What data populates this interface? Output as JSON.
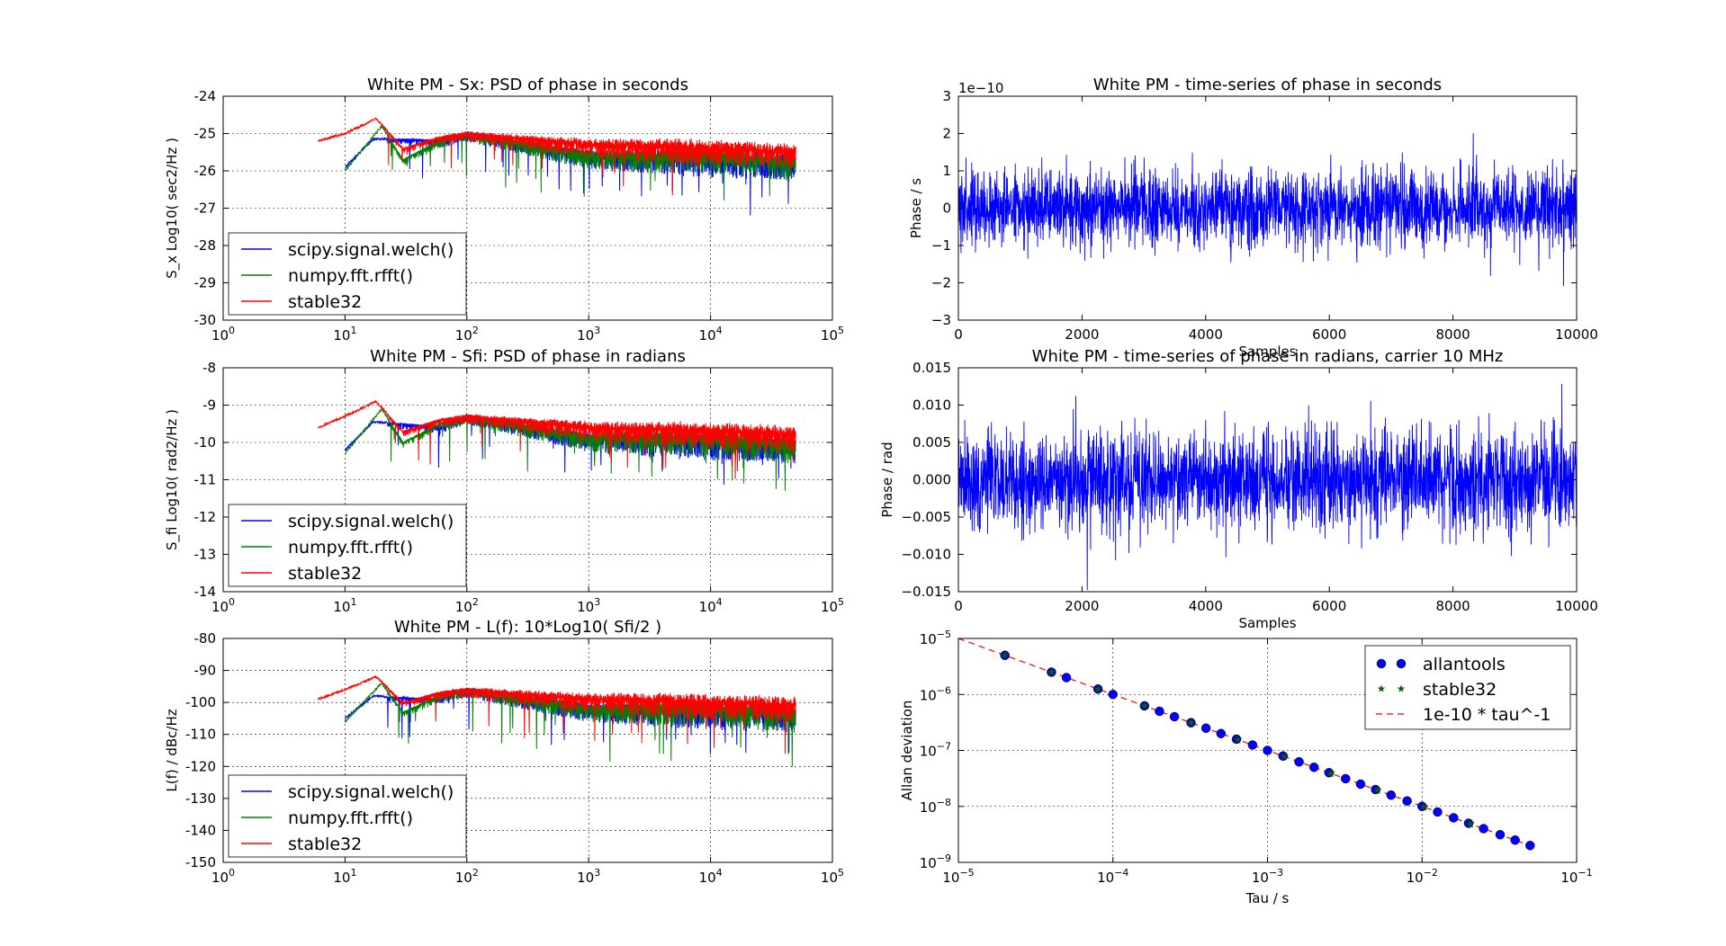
{
  "chart_data": [
    {
      "type": "line",
      "title": "White PM - Sx: PSD of phase in seconds",
      "xlabel": "",
      "ylabel": "S_x  Log10( sec2/Hz )",
      "xscale": "log",
      "xlim": [
        1,
        100000
      ],
      "ylim": [
        -30,
        -24
      ],
      "xticks": [
        {
          "v": 1,
          "m": "0"
        },
        {
          "v": 10,
          "m": "1"
        },
        {
          "v": 100,
          "m": "2"
        },
        {
          "v": 1000,
          "m": "3"
        },
        {
          "v": 10000,
          "m": "4"
        },
        {
          "v": 100000,
          "m": "5"
        }
      ],
      "yticks": [
        "-30",
        "-29",
        "-28",
        "-27",
        "-26",
        "-25",
        "-24"
      ],
      "grid": true,
      "legend": "bottom-left",
      "series": [
        {
          "name": "scipy.signal.welch()",
          "color": "#0000ff",
          "x_range": [
            10,
            50000
          ],
          "trend": [
            [
              10,
              -25.9
            ],
            [
              17,
              -25.15
            ],
            [
              30,
              -25.15
            ],
            [
              60,
              -25.2
            ],
            [
              100,
              -25.0
            ],
            [
              1000,
              -25.6
            ],
            [
              10000,
              -25.7
            ],
            [
              50000,
              -25.8
            ]
          ]
        },
        {
          "name": "numpy.fft.rfft()",
          "color": "#008000",
          "x_range": [
            10,
            50000
          ],
          "trend": [
            [
              10,
              -26.0
            ],
            [
              20,
              -24.8
            ],
            [
              30,
              -25.7
            ],
            [
              60,
              -25.2
            ],
            [
              100,
              -25.0
            ],
            [
              1000,
              -25.6
            ],
            [
              10000,
              -25.6
            ],
            [
              50000,
              -25.8
            ]
          ]
        },
        {
          "name": "stable32",
          "color": "#ff0000",
          "x_range": [
            6,
            50000
          ],
          "trend": [
            [
              6,
              -25.2
            ],
            [
              10,
              -25.0
            ],
            [
              18,
              -24.6
            ],
            [
              30,
              -25.4
            ],
            [
              60,
              -25.1
            ],
            [
              100,
              -25.0
            ],
            [
              1000,
              -25.3
            ],
            [
              10000,
              -25.4
            ],
            [
              50000,
              -25.5
            ]
          ]
        }
      ]
    },
    {
      "type": "line",
      "title": "White PM - time-series of phase in seconds",
      "xlabel": "Samples",
      "ylabel": "Phase / s",
      "offset_text": "1e−10",
      "xlim": [
        0,
        10000
      ],
      "ylim": [
        -3,
        3
      ],
      "xticks": [
        "0",
        "2000",
        "4000",
        "6000",
        "8000",
        "10000"
      ],
      "yticks": [
        "−3",
        "−2",
        "−1",
        "0",
        "1",
        "2",
        "3"
      ],
      "grid": false,
      "series": [
        {
          "name": "",
          "color": "#0000ff",
          "n_samples": 10000,
          "std": 0.5
        }
      ]
    },
    {
      "type": "line",
      "title": "White PM - Sfi: PSD of phase in radians",
      "xlabel": "",
      "ylabel": "S_fi  Log10( rad2/Hz )",
      "xscale": "log",
      "xlim": [
        1,
        100000
      ],
      "ylim": [
        -14,
        -8
      ],
      "xticks": [
        {
          "v": 1,
          "m": "0"
        },
        {
          "v": 10,
          "m": "1"
        },
        {
          "v": 100,
          "m": "2"
        },
        {
          "v": 1000,
          "m": "3"
        },
        {
          "v": 10000,
          "m": "4"
        },
        {
          "v": 100000,
          "m": "5"
        }
      ],
      "yticks": [
        "-14",
        "-13",
        "-12",
        "-11",
        "-10",
        "-9",
        "-8"
      ],
      "grid": true,
      "legend": "bottom-left",
      "series": [
        {
          "name": "scipy.signal.welch()",
          "color": "#0000ff",
          "x_range": [
            10,
            50000
          ],
          "trend": [
            [
              10,
              -10.2
            ],
            [
              17,
              -9.45
            ],
            [
              30,
              -9.5
            ],
            [
              60,
              -9.6
            ],
            [
              100,
              -9.3
            ],
            [
              1000,
              -9.9
            ],
            [
              10000,
              -10.0
            ],
            [
              50000,
              -10.1
            ]
          ]
        },
        {
          "name": "numpy.fft.rfft()",
          "color": "#008000",
          "x_range": [
            10,
            50000
          ],
          "trend": [
            [
              10,
              -10.3
            ],
            [
              20,
              -9.1
            ],
            [
              30,
              -10.0
            ],
            [
              60,
              -9.5
            ],
            [
              100,
              -9.3
            ],
            [
              1000,
              -9.9
            ],
            [
              10000,
              -9.9
            ],
            [
              50000,
              -10.1
            ]
          ]
        },
        {
          "name": "stable32",
          "color": "#ff0000",
          "x_range": [
            6,
            50000
          ],
          "trend": [
            [
              6,
              -9.6
            ],
            [
              10,
              -9.3
            ],
            [
              18,
              -8.9
            ],
            [
              30,
              -9.7
            ],
            [
              60,
              -9.4
            ],
            [
              100,
              -9.3
            ],
            [
              1000,
              -9.6
            ],
            [
              10000,
              -9.7
            ],
            [
              50000,
              -9.8
            ]
          ]
        }
      ]
    },
    {
      "type": "line",
      "title": "White PM - time-series of phase in radians, carrier 10 MHz",
      "xlabel": "Samples",
      "ylabel": "Phase / rad",
      "xlim": [
        0,
        10000
      ],
      "ylim": [
        -0.015,
        0.015
      ],
      "xticks": [
        "0",
        "2000",
        "4000",
        "6000",
        "8000",
        "10000"
      ],
      "yticks": [
        "−0.015",
        "−0.010",
        "−0.005",
        "0.000",
        "0.005",
        "0.010",
        "0.015"
      ],
      "grid": false,
      "series": [
        {
          "name": "",
          "color": "#0000ff",
          "n_samples": 10000,
          "std": 0.0032
        }
      ]
    },
    {
      "type": "line",
      "title": "White PM - L(f): 10*Log10( Sfi/2 )",
      "xlabel": "",
      "ylabel": "L(f) / dBc/Hz",
      "xscale": "log",
      "xlim": [
        1,
        100000
      ],
      "ylim": [
        -150,
        -80
      ],
      "xticks": [
        {
          "v": 1,
          "m": "0"
        },
        {
          "v": 10,
          "m": "1"
        },
        {
          "v": 100,
          "m": "2"
        },
        {
          "v": 1000,
          "m": "3"
        },
        {
          "v": 10000,
          "m": "4"
        },
        {
          "v": 100000,
          "m": "5"
        }
      ],
      "yticks": [
        "-150",
        "-140",
        "-130",
        "-120",
        "-110",
        "-100",
        "-90",
        "-80"
      ],
      "grid": true,
      "legend": "bottom-left",
      "series": [
        {
          "name": "scipy.signal.welch()",
          "color": "#0000ff",
          "x_range": [
            10,
            50000
          ],
          "trend": [
            [
              10,
              -105
            ],
            [
              17,
              -98
            ],
            [
              30,
              -98.5
            ],
            [
              60,
              -99
            ],
            [
              100,
              -96
            ],
            [
              1000,
              -102
            ],
            [
              10000,
              -103
            ],
            [
              50000,
              -104
            ]
          ]
        },
        {
          "name": "numpy.fft.rfft()",
          "color": "#008000",
          "x_range": [
            10,
            50000
          ],
          "trend": [
            [
              10,
              -106
            ],
            [
              20,
              -94
            ],
            [
              30,
              -103
            ],
            [
              60,
              -98
            ],
            [
              100,
              -96
            ],
            [
              1000,
              -102
            ],
            [
              10000,
              -102
            ],
            [
              50000,
              -104
            ]
          ]
        },
        {
          "name": "stable32",
          "color": "#ff0000",
          "x_range": [
            6,
            50000
          ],
          "trend": [
            [
              6,
              -99
            ],
            [
              10,
              -96
            ],
            [
              18,
              -92
            ],
            [
              30,
              -100
            ],
            [
              60,
              -97
            ],
            [
              100,
              -96
            ],
            [
              1000,
              -99
            ],
            [
              10000,
              -100
            ],
            [
              50000,
              -101
            ]
          ]
        }
      ]
    },
    {
      "type": "scatter",
      "title": "",
      "xlabel": "Tau / s",
      "ylabel": "Allan deviation",
      "xscale": "log",
      "yscale": "log",
      "xlim": [
        1e-05,
        0.1
      ],
      "ylim": [
        1e-09,
        1e-05
      ],
      "xticks": [
        {
          "v": 1e-05,
          "m": "−5"
        },
        {
          "v": 0.0001,
          "m": "−4"
        },
        {
          "v": 0.001,
          "m": "−3"
        },
        {
          "v": 0.01,
          "m": "−2"
        },
        {
          "v": 0.1,
          "m": "−1"
        }
      ],
      "yticks": [
        {
          "v": 1e-09,
          "m": "−9"
        },
        {
          "v": 1e-08,
          "m": "−8"
        },
        {
          "v": 1e-07,
          "m": "−7"
        },
        {
          "v": 1e-06,
          "m": "−6"
        },
        {
          "v": 1e-05,
          "m": "−5"
        }
      ],
      "grid": true,
      "legend": "top-right",
      "series": [
        {
          "name": "allantools",
          "color": "#0000ff",
          "marker": "circle",
          "x": [
            2e-05,
            4e-05,
            5e-05,
            8e-05,
            0.0001,
            0.00016,
            0.0002,
            0.00025,
            0.00032,
            0.0004,
            0.0005,
            0.00063,
            0.0008,
            0.001,
            0.00126,
            0.0016,
            0.002,
            0.0025,
            0.0032,
            0.004,
            0.005,
            0.0063,
            0.008,
            0.01,
            0.0126,
            0.016,
            0.02,
            0.025,
            0.032,
            0.04,
            0.05
          ],
          "y": [
            5e-06,
            2.5e-06,
            2e-06,
            1.25e-06,
            1e-06,
            6.25e-07,
            5e-07,
            4e-07,
            3.125e-07,
            2.5e-07,
            2e-07,
            1.587e-07,
            1.25e-07,
            1e-07,
            7.94e-08,
            6.25e-08,
            5e-08,
            4e-08,
            3.125e-08,
            2.5e-08,
            2e-08,
            1.59e-08,
            1.25e-08,
            1e-08,
            7.94e-09,
            6.25e-09,
            5e-09,
            4e-09,
            3.125e-09,
            2.5e-09,
            2e-09
          ]
        },
        {
          "name": "stable32",
          "color": "#006400",
          "marker": "star",
          "x": [
            2e-05,
            4e-05,
            8e-05,
            0.00016,
            0.00032,
            0.00064,
            0.00128,
            0.00256,
            0.00512,
            0.01024,
            0.02048
          ],
          "y": [
            5e-06,
            2.5e-06,
            1.25e-06,
            6.25e-07,
            3.125e-07,
            1.5625e-07,
            7.8125e-08,
            3.90625e-08,
            1.953e-08,
            9.77e-09,
            4.88e-09
          ]
        },
        {
          "name": "1e-10 * tau^-1",
          "color": "#ff0000",
          "style": "dashed",
          "coef": 1e-10,
          "exponent": -1
        }
      ]
    }
  ]
}
